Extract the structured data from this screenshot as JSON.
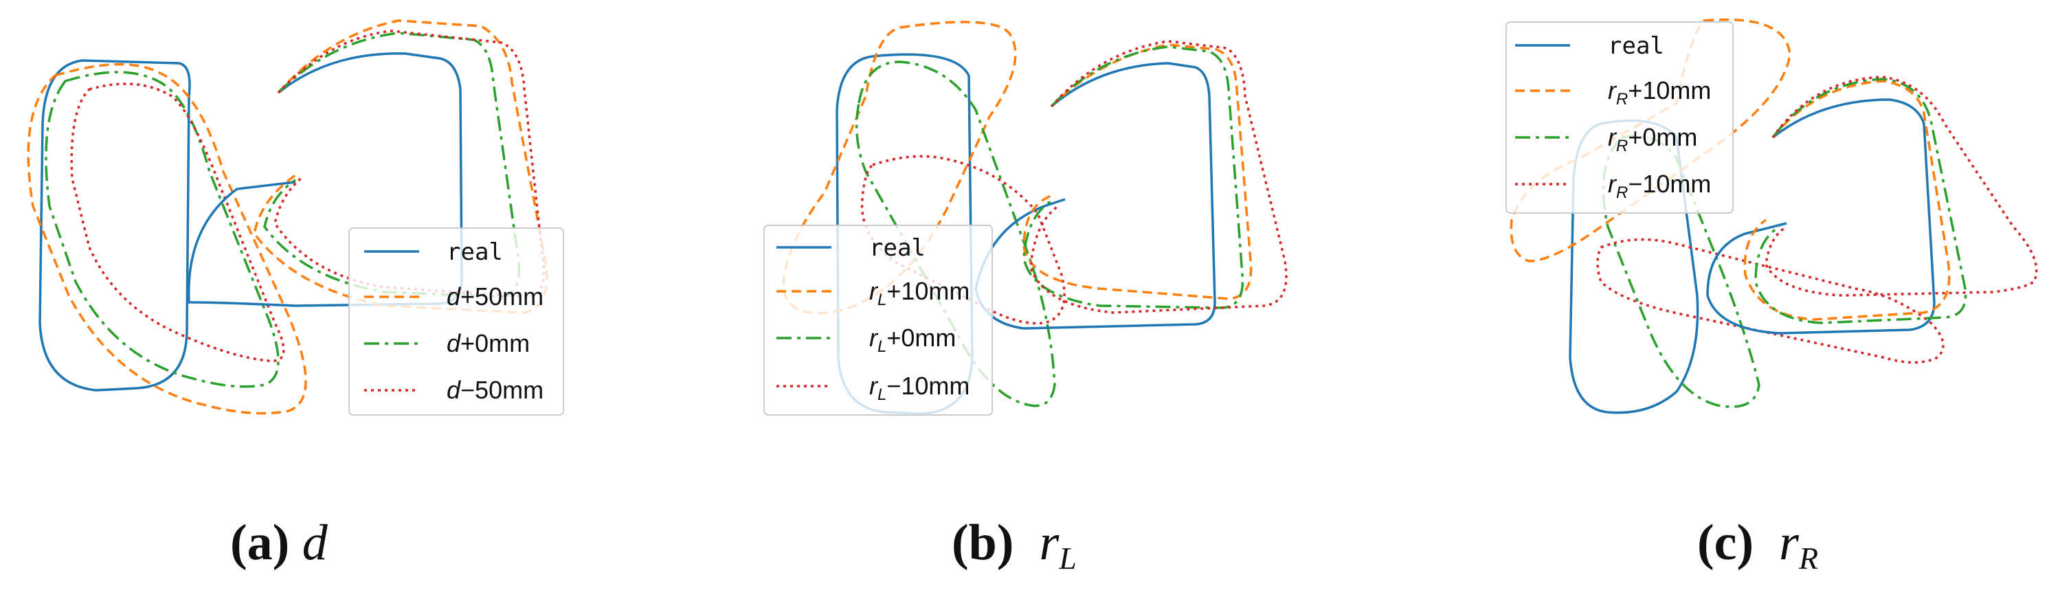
{
  "colors": {
    "real": "#1f77b4",
    "plus": "#ff7f0e",
    "zero": "#2ca02c",
    "minus": "#d62728",
    "legend_border": "#cccccc"
  },
  "panels": [
    {
      "id": "a",
      "caption_letter": "(a)",
      "caption_symbol": "d",
      "caption_sub": "",
      "legend": [
        {
          "series": "real",
          "label": "real"
        },
        {
          "series": "plus",
          "symbol": "d",
          "sub": "",
          "suffix": "+50mm"
        },
        {
          "series": "zero",
          "symbol": "d",
          "sub": "",
          "suffix": "+0mm"
        },
        {
          "series": "minus",
          "symbol": "d",
          "sub": "",
          "suffix": "−50mm"
        }
      ]
    },
    {
      "id": "b",
      "caption_letter": "(b)",
      "caption_symbol": "r",
      "caption_sub": "L",
      "legend": [
        {
          "series": "real",
          "label": "real"
        },
        {
          "series": "plus",
          "symbol": "r",
          "sub": "L",
          "suffix": "+10mm"
        },
        {
          "series": "zero",
          "symbol": "r",
          "sub": "L",
          "suffix": "+0mm"
        },
        {
          "series": "minus",
          "symbol": "r",
          "sub": "L",
          "suffix": "−10mm"
        }
      ]
    },
    {
      "id": "c",
      "caption_letter": "(c)",
      "caption_symbol": "r",
      "caption_sub": "R",
      "legend": [
        {
          "series": "real",
          "label": "real"
        },
        {
          "series": "plus",
          "symbol": "r",
          "sub": "R",
          "suffix": "+10mm"
        },
        {
          "series": "zero",
          "symbol": "r",
          "sub": "R",
          "suffix": "+0mm"
        },
        {
          "series": "minus",
          "symbol": "r",
          "sub": "R",
          "suffix": "−10mm"
        }
      ]
    }
  ]
}
